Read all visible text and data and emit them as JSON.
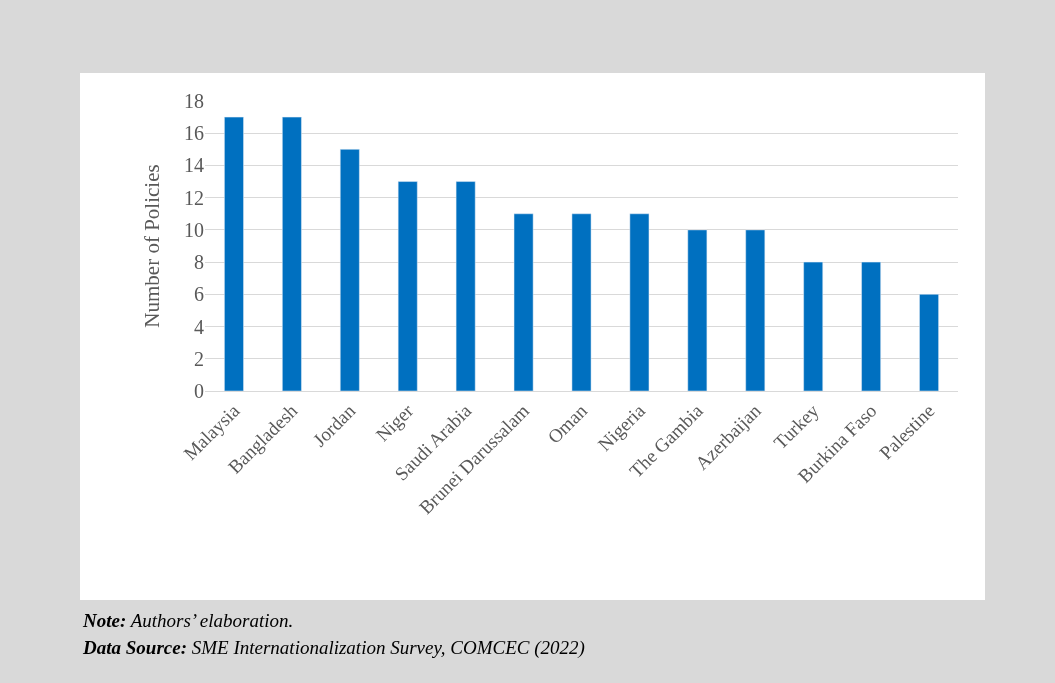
{
  "chart_data": {
    "type": "bar",
    "ylabel": "Number of Policies",
    "categories": [
      "Malaysia",
      "Bangladesh",
      "Jordan",
      "Niger",
      "Saudi Arabia",
      "Brunei Darussalam",
      "Oman",
      "Nigeria",
      "The Gambia",
      "Azerbaijan",
      "Turkey",
      "Burkina Faso",
      "Palestine"
    ],
    "values": [
      17,
      17,
      15,
      13,
      13,
      11,
      11,
      11,
      10,
      10,
      8,
      8,
      6
    ],
    "color": "#0070c0",
    "ylim": [
      0,
      18
    ],
    "yticks": [
      0,
      2,
      4,
      6,
      8,
      10,
      12,
      14,
      16,
      18
    ],
    "grid": "y",
    "annotations": [
      "Note: Authors’ elaboration.",
      "Data Source: SME Internationalization Survey, COMCEC (2022)"
    ]
  }
}
